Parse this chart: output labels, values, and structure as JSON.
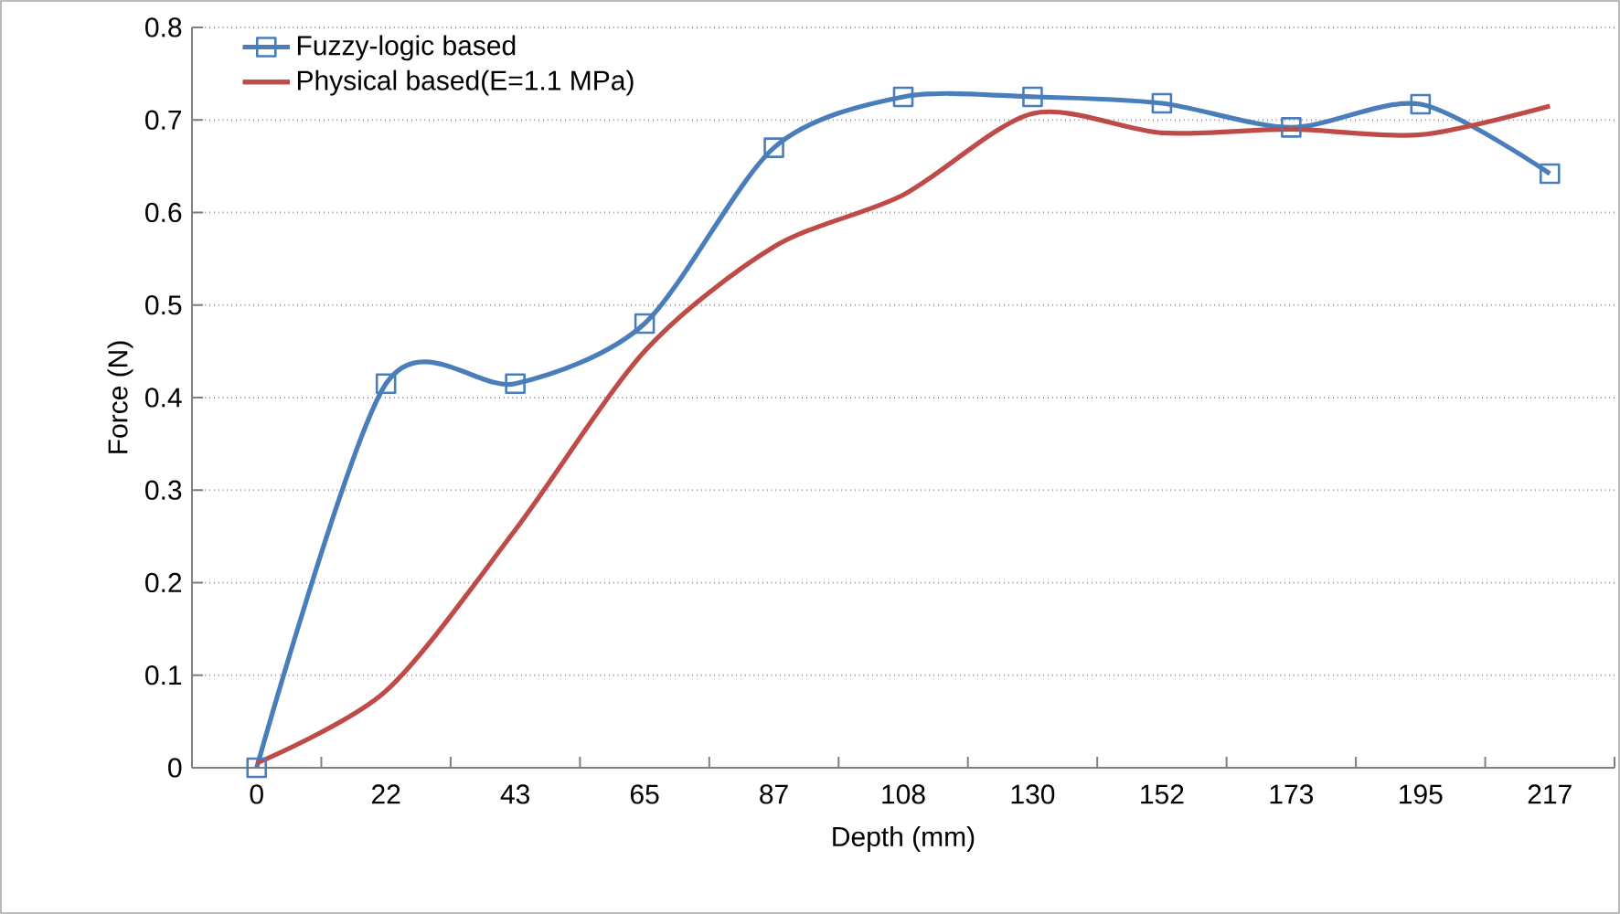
{
  "chart_data": {
    "type": "line",
    "xlabel": "Depth (mm)",
    "ylabel": "Force (N)",
    "categories": [
      "0",
      "22",
      "43",
      "65",
      "87",
      "108",
      "130",
      "152",
      "173",
      "195",
      "217"
    ],
    "series": [
      {
        "name": "Fuzzy-logic based",
        "color": "#4a7ebb",
        "marker": "square",
        "values": [
          0,
          0.415,
          0.415,
          0.48,
          0.67,
          0.725,
          0.725,
          0.718,
          0.692,
          0.717,
          0.642
        ]
      },
      {
        "name": "Physical based(E=1.1 MPa)",
        "color": "#be4b48",
        "marker": "none",
        "values": [
          0.005,
          0.083,
          0.257,
          0.45,
          0.563,
          0.619,
          0.707,
          0.686,
          0.69,
          0.684,
          0.715
        ]
      }
    ],
    "ylim": [
      0,
      0.8
    ],
    "yticks": [
      0,
      0.1,
      0.2,
      0.3,
      0.4,
      0.5,
      0.6,
      0.7,
      0.8
    ],
    "grid": "y",
    "legend": "top left"
  }
}
